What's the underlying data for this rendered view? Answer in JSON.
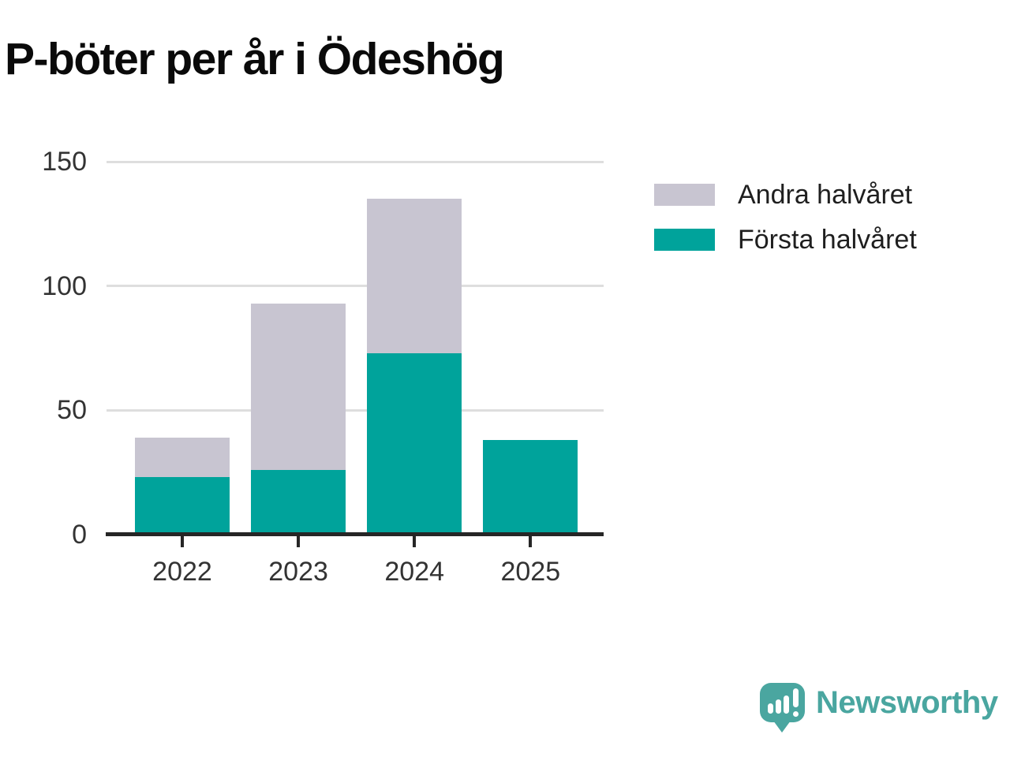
{
  "title": "P-böter per år i Ödeshög",
  "chart_data": {
    "type": "bar",
    "stacked": true,
    "title": "P-böter per år i Ödeshög",
    "categories": [
      "2022",
      "2023",
      "2024",
      "2025"
    ],
    "series": [
      {
        "name": "Första halvåret",
        "color": "#00a39b",
        "values": [
          23,
          26,
          73,
          38
        ]
      },
      {
        "name": "Andra halvåret",
        "color": "#c8c5d1",
        "values": [
          16,
          67,
          62,
          0
        ]
      }
    ],
    "ylim": [
      0,
      150
    ],
    "yticks": [
      0,
      50,
      100,
      150
    ],
    "xlabel": "",
    "ylabel": "",
    "grid": "horizontal",
    "legend_position": "right",
    "legend_order": [
      "Andra halvåret",
      "Första halvåret"
    ]
  },
  "colors": {
    "axis": "#262626",
    "gridline": "#dedede",
    "tick_label": "#333333",
    "title": "#0a0a0a",
    "brand": "#4aa6a0"
  },
  "brand": {
    "name": "Newsworthy"
  }
}
